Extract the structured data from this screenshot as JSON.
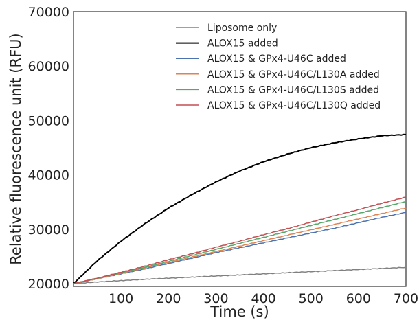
{
  "chart_data": {
    "type": "line",
    "title": "",
    "xlabel": "Time (s)",
    "ylabel": "Relative fluorescence unit (RFU)",
    "xlim": [
      0,
      700
    ],
    "ylim": [
      19500,
      70000
    ],
    "xticks": [
      100,
      200,
      300,
      400,
      500,
      600,
      700
    ],
    "xtick_labels": [
      "100",
      "200",
      "300",
      "400",
      "500",
      "600",
      "700"
    ],
    "yticks": [
      20000,
      30000,
      40000,
      50000,
      60000,
      70000
    ],
    "ytick_labels": [
      "20000",
      "30000",
      "40000",
      "50000",
      "60000",
      "70000"
    ],
    "grid": false,
    "legend_position": "top-right",
    "x": [
      0,
      50,
      100,
      150,
      200,
      250,
      300,
      350,
      400,
      450,
      500,
      550,
      600,
      650,
      700
    ],
    "series": [
      {
        "name": "Liposome only",
        "color": "#808080",
        "values": [
          20000,
          20300,
          20550,
          20800,
          21000,
          21200,
          21400,
          21600,
          21800,
          22000,
          22200,
          22400,
          22600,
          22800,
          23000
        ]
      },
      {
        "name": "ALOX15 added",
        "color": "#000000",
        "values": [
          20000,
          24200,
          27800,
          31000,
          33900,
          36400,
          38700,
          40700,
          42400,
          43800,
          45000,
          45900,
          46600,
          47200,
          47400
        ]
      },
      {
        "name": "ALOX15 & GPx4-U46C added",
        "color": "#4c72b0",
        "values": [
          20000,
          20900,
          21800,
          22700,
          23700,
          24700,
          25700,
          26600,
          27500,
          28400,
          29300,
          30200,
          31200,
          32200,
          33100
        ]
      },
      {
        "name": "ALOX15 & GPx4-U46C/L130A added",
        "color": "#dd8452",
        "values": [
          20000,
          20900,
          21900,
          22900,
          23900,
          24900,
          25900,
          26900,
          27900,
          28900,
          29900,
          30900,
          31900,
          32900,
          33900
        ]
      },
      {
        "name": "ALOX15 & GPx4-U46C/L130S added",
        "color": "#55a868",
        "values": [
          20000,
          21000,
          22000,
          23000,
          24100,
          25200,
          26300,
          27400,
          28500,
          29600,
          30700,
          31800,
          32900,
          34000,
          35100
        ]
      },
      {
        "name": "ALOX15 & GPx4-U46C/L130Q added",
        "color": "#c44e52",
        "values": [
          20000,
          21000,
          22100,
          23200,
          24400,
          25500,
          26700,
          27800,
          29000,
          30100,
          31300,
          32500,
          33600,
          34800,
          35900
        ]
      }
    ]
  }
}
